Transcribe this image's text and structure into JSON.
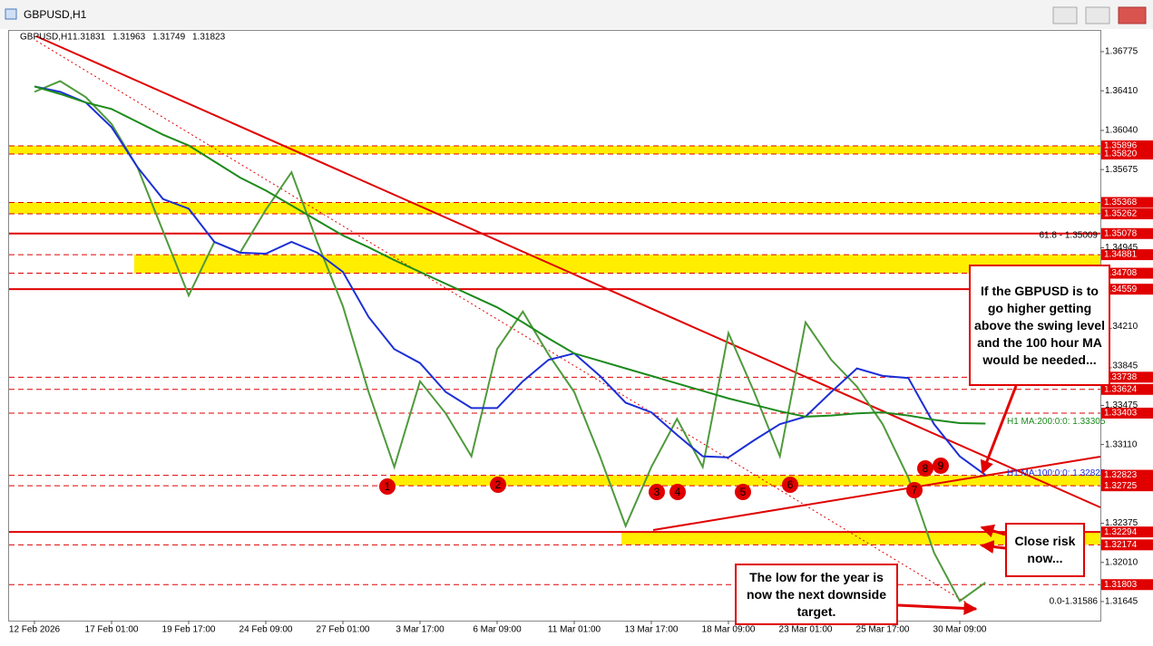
{
  "window": {
    "title": "GBPUSD,H1"
  },
  "chart_data": {
    "type": "line",
    "title": "GBPUSD,H1",
    "ohlc": [
      1.31831,
      1.31963,
      1.31749,
      1.31823
    ],
    "categories": [
      "12 Feb 2026",
      null,
      null,
      "17 Feb 01:00",
      null,
      null,
      "19 Feb 17:00",
      null,
      null,
      "24 Feb 09:00",
      null,
      null,
      "27 Feb 01:00",
      null,
      null,
      "3 Mar 17:00",
      null,
      null,
      "6 Mar 09:00",
      null,
      null,
      "11 Mar 01:00",
      null,
      null,
      "13 Mar 17:00",
      null,
      null,
      "18 Mar 09:00",
      null,
      null,
      "23 Mar 01:00",
      null,
      null,
      "25 Mar 17:00",
      null,
      null,
      "30 Mar 09:00",
      null
    ],
    "series": [
      {
        "name": "GBPUSD",
        "color": "#4f9a3c",
        "values": [
          1.364,
          1.365,
          1.3635,
          1.361,
          1.357,
          1.351,
          1.345,
          1.35,
          1.349,
          1.353,
          1.3565,
          1.35,
          1.344,
          1.336,
          1.329,
          1.337,
          1.334,
          1.33,
          1.34,
          1.3435,
          1.3395,
          1.336,
          1.33,
          1.3235,
          1.329,
          1.3335,
          1.329,
          1.3415,
          1.336,
          1.33,
          1.3425,
          1.339,
          1.3365,
          1.333,
          1.328,
          1.321,
          1.3165,
          1.31823
        ]
      },
      {
        "name": "H1 MA:100:0:0: 1.32825",
        "color": "#1c2fd6",
        "values": [
          1.3645,
          1.364,
          1.363,
          1.3607,
          1.357,
          1.354,
          1.3531,
          1.35,
          1.349,
          1.3489,
          1.35,
          1.349,
          1.3472,
          1.343,
          1.34,
          1.3387,
          1.336,
          1.3345,
          1.3345,
          1.337,
          1.339,
          1.3396,
          1.3375,
          1.335,
          1.3341,
          1.332,
          1.33,
          1.3299,
          1.3315,
          1.333,
          1.3337,
          1.336,
          1.3382,
          1.3375,
          1.3373,
          1.333,
          1.33,
          1.32825
        ]
      },
      {
        "name": "H1 MA:200:0:0: 1.33305",
        "color": "#1d8a1d",
        "values": [
          1.3645,
          1.3638,
          1.363,
          1.3624,
          1.3612,
          1.36,
          1.359,
          1.3575,
          1.356,
          1.3548,
          1.3534,
          1.352,
          1.3506,
          1.3495,
          1.3483,
          1.3472,
          1.3461,
          1.345,
          1.3439,
          1.3425,
          1.341,
          1.3396,
          1.3389,
          1.3382,
          1.3375,
          1.3368,
          1.3361,
          1.3354,
          1.3348,
          1.3342,
          1.3337,
          1.3338,
          1.334,
          1.3341,
          1.3338,
          1.3334,
          1.3331,
          1.33305
        ]
      }
    ],
    "ylim": [
      1.31467,
      1.36961
    ],
    "yticks": [
      1.36775,
      {
        "value": 1.3641,
        "label": "1.36410"
      },
      {
        "value": 1.3604,
        "label": "1.36040"
      },
      1.35675,
      1.34945,
      {
        "value": 1.3421,
        "label": "1.34210"
      },
      1.33845,
      1.33475,
      {
        "value": 1.3311,
        "label": "1.33110"
      },
      1.32375,
      {
        "value": 1.3201,
        "label": "1.32010"
      },
      1.31645
    ],
    "zones": [
      {
        "levels": [
          {
            "value": 1.35896,
            "dashed": true
          },
          {
            "value": 1.3582,
            "label": "1.35820",
            "dashed": true
          }
        ]
      },
      {
        "levels": [
          {
            "value": 1.35368,
            "dashed": true
          },
          {
            "value": 1.35262,
            "dashed": true
          }
        ]
      },
      {
        "levels": [
          {
            "value": 1.34881,
            "dashed": true
          },
          {
            "value": 1.34708,
            "dashed": true
          }
        ]
      },
      {
        "levels": [
          {
            "value": 1.32823,
            "dashed": true
          },
          {
            "value": 1.32725,
            "dashed": true
          }
        ]
      },
      {
        "levels": [
          {
            "value": 1.32294,
            "dashed": false
          },
          {
            "value": 1.32174,
            "dashed": true
          }
        ]
      }
    ],
    "levels": [
      {
        "value": 1.35078,
        "dashed": false
      },
      {
        "value": 1.34559,
        "dashed": false
      },
      {
        "value": 1.33738,
        "dashed": true
      },
      {
        "value": 1.33624,
        "dashed": true
      },
      {
        "value": 1.33403,
        "dashed": true
      },
      {
        "value": 1.31803,
        "dashed": true
      }
    ],
    "fib_labels": [
      "61.8 - 1.35009",
      "0.0-1.31586"
    ],
    "markers": [
      "1",
      "2",
      "3",
      "4",
      "5",
      "6",
      "7",
      "8",
      "9"
    ],
    "callouts": [
      "If the GBPUSD is to go higher getting above the swing level and the 100 hour MA would be needed...",
      "Close risk now...",
      "The low for the year is now the next downside target."
    ]
  }
}
